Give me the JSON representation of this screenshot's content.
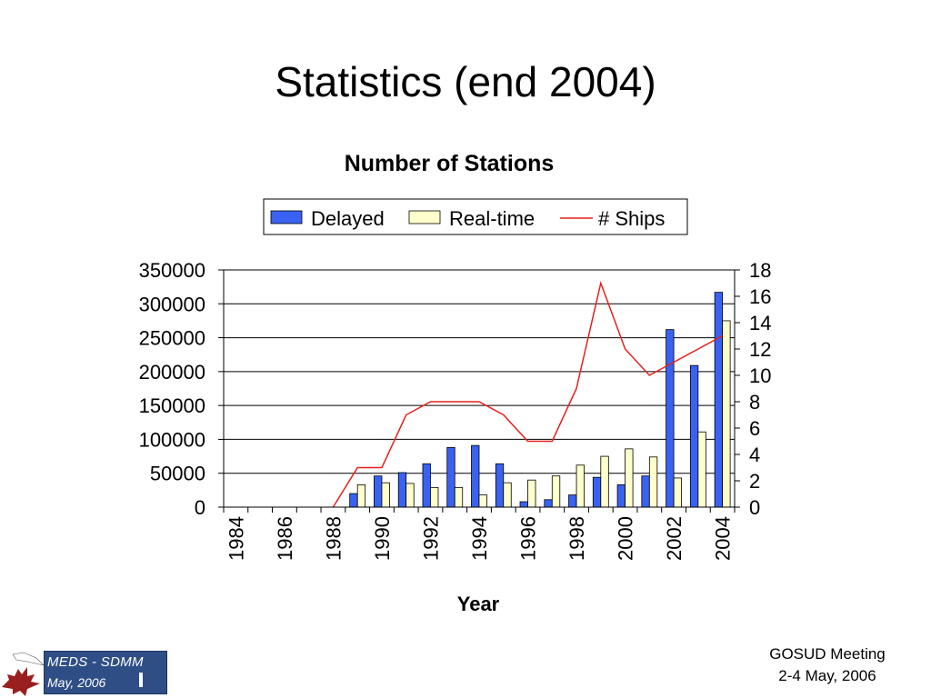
{
  "slide": {
    "title": "Statistics (end 2004)",
    "footer_line1": "GOSUD Meeting",
    "footer_line2": "2-4 May, 2006",
    "logo_line1": "MEDS - SDMM",
    "logo_line2": "May, 2006"
  },
  "colors": {
    "delayed": "#3a62f2",
    "realtime": "#ffffcc",
    "ships": "#e8201c"
  },
  "chart_data": {
    "type": "bar",
    "title": "Number of Stations",
    "xlabel": "Year",
    "ylabel": "",
    "y2label": "",
    "ylim": [
      0,
      350000
    ],
    "y2lim": [
      0,
      18
    ],
    "yticks": [
      0,
      50000,
      100000,
      150000,
      200000,
      250000,
      300000,
      350000
    ],
    "y2ticks": [
      0,
      2,
      4,
      6,
      8,
      10,
      12,
      14,
      16,
      18
    ],
    "grid": true,
    "legend": "top-center",
    "categories": [
      1984,
      1985,
      1986,
      1987,
      1988,
      1989,
      1990,
      1991,
      1992,
      1993,
      1994,
      1995,
      1996,
      1997,
      1998,
      1999,
      2000,
      2001,
      2002,
      2003,
      2004
    ],
    "tick_labels": [
      "1984",
      "1986",
      "1988",
      "1990",
      "1992",
      "1994",
      "1996",
      "1998",
      "2000",
      "2002",
      "2004"
    ],
    "series": [
      {
        "name": "Delayed",
        "kind": "bar",
        "axis": "left",
        "values": [
          0,
          0,
          0,
          0,
          0,
          20000,
          46000,
          51000,
          64000,
          88000,
          91000,
          64000,
          8000,
          11000,
          18000,
          44000,
          33000,
          46000,
          262000,
          209000,
          317000
        ]
      },
      {
        "name": "Real-time",
        "kind": "bar",
        "axis": "left",
        "values": [
          0,
          0,
          0,
          0,
          0,
          33000,
          36000,
          35000,
          29000,
          29000,
          18000,
          36000,
          40000,
          46000,
          62000,
          75000,
          86000,
          74000,
          43000,
          111000,
          275000
        ]
      },
      {
        "name": "# Ships",
        "kind": "line",
        "axis": "right",
        "values": [
          0,
          0,
          0,
          0,
          0,
          3,
          3,
          7,
          8,
          8,
          8,
          7,
          5,
          5,
          9,
          17,
          12,
          10,
          11,
          12,
          13
        ]
      }
    ]
  }
}
